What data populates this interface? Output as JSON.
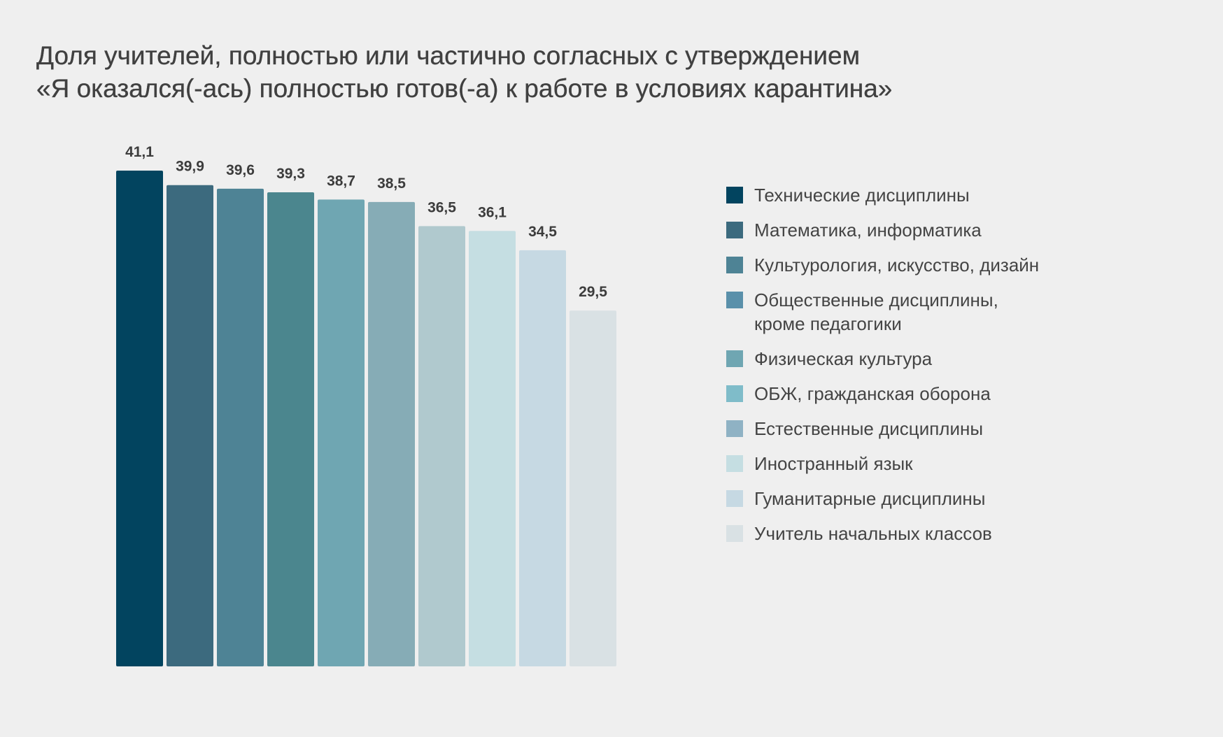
{
  "title_lines": [
    "Доля учителей, полностью или частично согласных с утверждением",
    "«Я оказался(-ась) полностью готов(-а) к работе в условиях карантина»"
  ],
  "chart_data": {
    "type": "bar",
    "title": "Доля учителей, полностью или частично согласных с утверждением «Я оказался(-ась) полностью готов(-а) к работе в условиях карантина»",
    "categories": [
      "Технические дисциплины",
      "Математика, информатика",
      "Культурология, искусство, дизайн",
      "Общественные дисциплины, кроме педагогики",
      "Физическая культура",
      "ОБЖ, гражданская оборона",
      "Естественные дисциплины",
      "Иностранный язык",
      "Гуманитарные дисциплины",
      "Учитель начальных классов"
    ],
    "values": [
      41.1,
      39.9,
      39.6,
      39.3,
      38.7,
      38.5,
      36.5,
      36.1,
      34.5,
      29.5
    ],
    "value_labels": [
      "41,1",
      "39,9",
      "39,6",
      "39,3",
      "38,7",
      "38,5",
      "36,5",
      "36,1",
      "34,5",
      "29,5"
    ],
    "bar_colors": [
      "#02445f",
      "#3c6a7e",
      "#4e8395",
      "#4b868e",
      "#6fa6b2",
      "#86acb6",
      "#b0c9ce",
      "#c5dee2",
      "#c6d9e3",
      "#d9e1e4"
    ],
    "legend_colors": [
      "#02445f",
      "#3c6a7e",
      "#4e8395",
      "#5a90aa",
      "#6fa6b2",
      "#7fbcc9",
      "#8fb2c4",
      "#c5dee2",
      "#c6d9e3",
      "#d9e1e4"
    ],
    "ylim": [
      0,
      41.1
    ],
    "legend_position": "right",
    "grid": false,
    "xlabel": "",
    "ylabel": ""
  }
}
